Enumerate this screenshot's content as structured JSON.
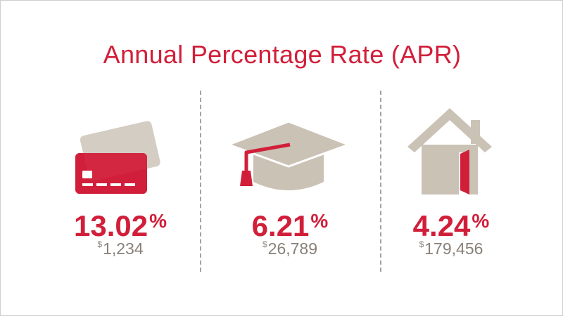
{
  "title": "Annual Percentage Rate (APR)",
  "colors": {
    "accent": "#d11f3a",
    "neutral": "#cbc2b6",
    "text_muted": "#888078",
    "divider": "#a8a29a"
  },
  "items": [
    {
      "icon": "credit-card-icon",
      "rate": "13.02",
      "percent_sign": "%",
      "currency_symbol": "$",
      "amount": "1,234"
    },
    {
      "icon": "graduation-cap-icon",
      "rate": "6.21",
      "percent_sign": "%",
      "currency_symbol": "$",
      "amount": "26,789"
    },
    {
      "icon": "house-icon",
      "rate": "4.24",
      "percent_sign": "%",
      "currency_symbol": "$",
      "amount": "179,456"
    }
  ]
}
